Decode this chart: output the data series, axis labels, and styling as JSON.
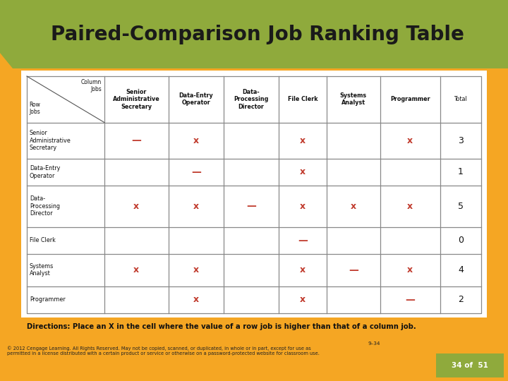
{
  "title": "Paired-Comparison Job Ranking Table",
  "title_bg_color": "#8faa3c",
  "title_text_color": "#1a1a1a",
  "slide_bg_color": "#f5a623",
  "content_bg_color": "#ffffff",
  "col_headers": [
    "Senior\nAdministrative\nSecretary",
    "Data-Entry\nOperator",
    "Data-\nProcessing\nDirector",
    "File Clerk",
    "Systems\nAnalyst",
    "Programmer",
    "Total"
  ],
  "row_headers": [
    "Senior\nAdministrative\nSecretary",
    "Data-Entry\nOperator",
    "Data-\nProcessing\nDirector",
    "File Clerk",
    "Systems\nAnalyst",
    "Programmer"
  ],
  "cell_data": [
    [
      "—",
      "X",
      "",
      "X",
      "",
      "X",
      "3"
    ],
    [
      "",
      "—",
      "",
      "X",
      "",
      "",
      "1"
    ],
    [
      "X",
      "X",
      "—",
      "X",
      "X",
      "X",
      "5"
    ],
    [
      "",
      "",
      "",
      "—",
      "",
      "",
      "0"
    ],
    [
      "X",
      "X",
      "",
      "X",
      "—",
      "X",
      "4"
    ],
    [
      "",
      "X",
      "",
      "X",
      "",
      "—",
      "2"
    ]
  ],
  "x_marker_color": "#c0392b",
  "dash_color": "#c0392b",
  "grid_color": "#888888",
  "header_text_color": "#111111",
  "row_label_text_color": "#111111",
  "total_text_color": "#111111",
  "directions_text": "Directions: Place an X in the cell where the value of a row job is higher than that of a column job.",
  "copyright_text": "© 2012 Cengage Learning. All Rights Reserved. May not be copied, scanned, or duplicated, in whole or in part, except for use as\npermitted in a license distributed with a certain product or service or otherwise on a password-protected website for classroom use.",
  "slide_number_text": "9–34",
  "slide_page_text": "34 of  51",
  "slide_page_bg": "#8faa3c",
  "slide_page_text_color": "#ffffff"
}
